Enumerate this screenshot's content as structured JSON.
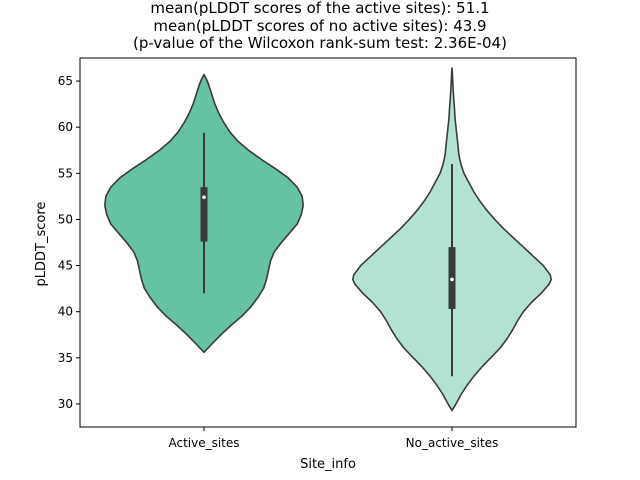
{
  "chart_data": {
    "type": "violin",
    "title_lines": [
      "mean(pLDDT scores of the active sites): 51.1",
      "mean(pLDDT scores of no active sites): 43.9",
      "(p-value of the Wilcoxon rank-sum test: 2.36E-04)"
    ],
    "xlabel": "Site_info",
    "ylabel": "pLDDT_score",
    "ylim": [
      27.5,
      67.5
    ],
    "yticks": [
      30,
      35,
      40,
      45,
      50,
      55,
      60,
      65
    ],
    "categories": [
      "Active_sites",
      "No_active_sites"
    ],
    "grid": false,
    "colors": {
      "Active_sites": "#66c2a5",
      "No_active_sites": "#b3e2d5",
      "edge": "#3a3a3a"
    },
    "violins": [
      {
        "category": "Active_sites",
        "min": 35.6,
        "max": 65.7,
        "median": 52.4,
        "q1": 47.6,
        "q3": 53.5,
        "whisker_low": 42.0,
        "whisker_high": 59.4,
        "density": [
          [
            35.6,
            0.0
          ],
          [
            36.5,
            0.08
          ],
          [
            37.5,
            0.17
          ],
          [
            38.5,
            0.27
          ],
          [
            39.5,
            0.38
          ],
          [
            40.5,
            0.47
          ],
          [
            41.5,
            0.54
          ],
          [
            42.5,
            0.6
          ],
          [
            43.5,
            0.63
          ],
          [
            44.5,
            0.65
          ],
          [
            45.5,
            0.67
          ],
          [
            46.5,
            0.71
          ],
          [
            47.5,
            0.78
          ],
          [
            48.5,
            0.86
          ],
          [
            49.5,
            0.94
          ],
          [
            50.5,
            0.98
          ],
          [
            51.5,
            1.0
          ],
          [
            52.5,
            0.99
          ],
          [
            53.5,
            0.94
          ],
          [
            54.5,
            0.85
          ],
          [
            55.5,
            0.72
          ],
          [
            56.5,
            0.58
          ],
          [
            57.5,
            0.45
          ],
          [
            58.5,
            0.34
          ],
          [
            59.5,
            0.26
          ],
          [
            60.5,
            0.2
          ],
          [
            61.5,
            0.15
          ],
          [
            62.5,
            0.11
          ],
          [
            63.5,
            0.08
          ],
          [
            64.5,
            0.05
          ],
          [
            65.2,
            0.025
          ],
          [
            65.7,
            0.0
          ]
        ]
      },
      {
        "category": "No_active_sites",
        "min": 29.3,
        "max": 66.4,
        "median": 43.5,
        "q1": 40.3,
        "q3": 47.0,
        "whisker_low": 33.0,
        "whisker_high": 56.0,
        "density": [
          [
            29.3,
            0.0
          ],
          [
            30.0,
            0.04
          ],
          [
            31.0,
            0.09
          ],
          [
            32.0,
            0.15
          ],
          [
            33.0,
            0.22
          ],
          [
            34.0,
            0.3
          ],
          [
            35.0,
            0.39
          ],
          [
            36.0,
            0.48
          ],
          [
            37.0,
            0.55
          ],
          [
            38.0,
            0.61
          ],
          [
            39.0,
            0.66
          ],
          [
            40.0,
            0.72
          ],
          [
            41.0,
            0.8
          ],
          [
            42.0,
            0.9
          ],
          [
            43.0,
            0.98
          ],
          [
            43.5,
            1.0
          ],
          [
            44.0,
            0.99
          ],
          [
            45.0,
            0.92
          ],
          [
            46.0,
            0.82
          ],
          [
            47.0,
            0.72
          ],
          [
            48.0,
            0.62
          ],
          [
            49.0,
            0.52
          ],
          [
            50.0,
            0.43
          ],
          [
            51.0,
            0.35
          ],
          [
            52.0,
            0.28
          ],
          [
            53.0,
            0.22
          ],
          [
            54.0,
            0.17
          ],
          [
            55.0,
            0.12
          ],
          [
            56.0,
            0.09
          ],
          [
            57.0,
            0.07
          ],
          [
            58.0,
            0.06
          ],
          [
            59.0,
            0.05
          ],
          [
            60.0,
            0.04
          ],
          [
            61.0,
            0.03
          ],
          [
            62.0,
            0.025
          ],
          [
            63.0,
            0.018
          ],
          [
            64.0,
            0.012
          ],
          [
            65.0,
            0.007
          ],
          [
            66.0,
            0.003
          ],
          [
            66.4,
            0.0
          ]
        ]
      }
    ]
  }
}
